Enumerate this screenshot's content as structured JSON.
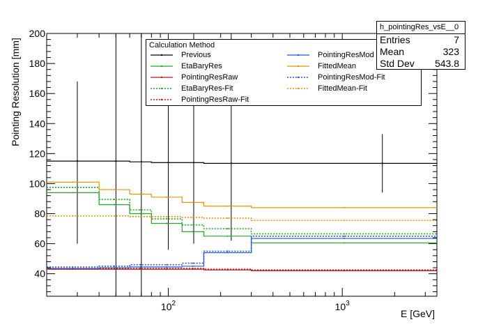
{
  "chart_data": {
    "type": "line",
    "title": "",
    "xlabel": "E [GeV]",
    "ylabel": "Pointing Resolution [mm]",
    "xscale": "log",
    "xlim": [
      20,
      3500
    ],
    "ylim": [
      25,
      200
    ],
    "yticks": [
      40,
      60,
      80,
      100,
      120,
      140,
      160,
      180,
      200
    ],
    "xtick_labels": [
      {
        "base": "10",
        "exp": "2",
        "value": 100
      },
      {
        "base": "10",
        "exp": "3",
        "value": 1000
      }
    ],
    "bin_edges": [
      20,
      40,
      60,
      80,
      120,
      160,
      300,
      3500
    ],
    "legend": {
      "header": "Calculation Method",
      "placement": "top-center"
    },
    "series": [
      {
        "name": "Previous",
        "color": "#000000",
        "style": "solid",
        "values": [
          115,
          115,
          114.5,
          114,
          114,
          113.5,
          113.5
        ],
        "points": [
          {
            "x": 30,
            "y": 115,
            "ylo": 60,
            "yhi": 168
          },
          {
            "x": 50,
            "y": 115,
            "ylo": 25,
            "yhi": 200
          },
          {
            "x": 70,
            "y": 114.5,
            "ylo": 25,
            "yhi": 200
          },
          {
            "x": 100,
            "y": 114,
            "ylo": 56,
            "yhi": 200
          },
          {
            "x": 140,
            "y": 114,
            "ylo": 60,
            "yhi": 200
          },
          {
            "x": 230,
            "y": 113.5,
            "ylo": 62,
            "yhi": 200
          },
          {
            "x": 1700,
            "y": 113.5,
            "ylo": 94,
            "yhi": 133
          }
        ]
      },
      {
        "name": "EtaBaryRes",
        "color": "#22aa22",
        "style": "solid",
        "values": [
          94,
          86,
          80,
          73.5,
          68,
          65,
          60.5
        ]
      },
      {
        "name": "PointingResRaw",
        "color": "#cc1111",
        "style": "solid",
        "values": [
          43,
          43,
          43,
          43,
          43,
          42.5,
          42
        ]
      },
      {
        "name": "EtaBaryRes-Fit",
        "color": "#22aa22",
        "style": "dotted",
        "values": [
          97.5,
          89.5,
          82.5,
          76.5,
          72.5,
          70,
          66.5
        ]
      },
      {
        "name": "PointingResRaw-Fit",
        "color": "#cc1111",
        "style": "dotted",
        "values": [
          43.5,
          43.5,
          43.5,
          43.5,
          43.5,
          43,
          42.5
        ]
      },
      {
        "name": "PointingResMod",
        "color": "#2255dd",
        "style": "solid",
        "values": [
          43.5,
          44,
          44.5,
          44.5,
          45,
          54,
          63.5
        ]
      },
      {
        "name": "FittedMean",
        "color": "#e69500",
        "style": "solid",
        "values": [
          101,
          96,
          93,
          91,
          87.5,
          85,
          84
        ]
      },
      {
        "name": "PointingResMod-Fit",
        "color": "#2255dd",
        "style": "dotted",
        "values": [
          44.5,
          45,
          46,
          46,
          47,
          55,
          65
        ]
      },
      {
        "name": "FittedMean-Fit",
        "color": "#e69500",
        "style": "dotted",
        "values": [
          78.5,
          78.5,
          78,
          78,
          77.5,
          77,
          75.5
        ]
      }
    ]
  },
  "stats": {
    "title": "h_pointingRes_vsE__0",
    "rows": [
      {
        "label": "Entries",
        "value": "7"
      },
      {
        "label": "Mean",
        "value": "323"
      },
      {
        "label": "Std Dev",
        "value": "543.8"
      }
    ]
  }
}
